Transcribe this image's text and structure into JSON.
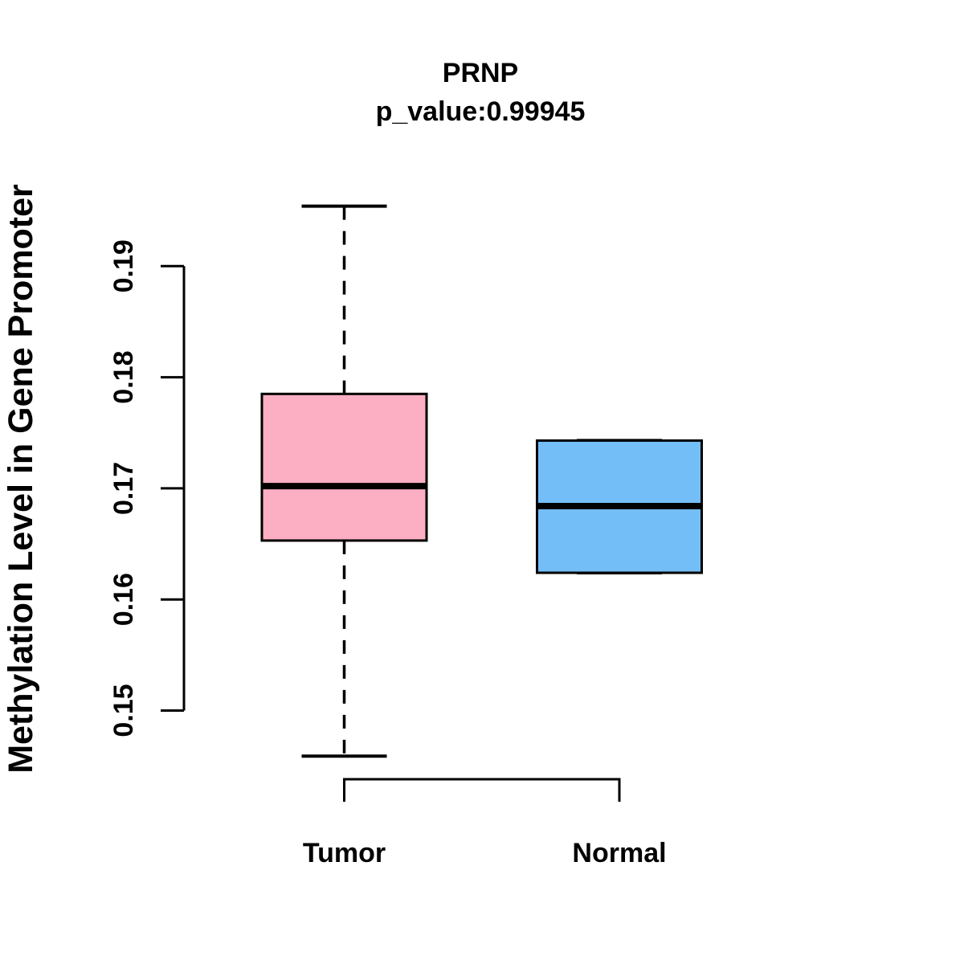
{
  "page": {
    "background": "#ffffff",
    "foreground": "#000000"
  },
  "chart_data": {
    "type": "boxplot",
    "title": "PRNP",
    "subtitle": "p_value:0.99945",
    "p_value": 0.99945,
    "ylabel": "Methylation Level in Gene Promoter",
    "xlabel": "",
    "categories": [
      "Tumor",
      "Normal"
    ],
    "series": [
      {
        "name": "Tumor",
        "color": "#FCAFC3",
        "whisker_low": 0.1459,
        "q1": 0.1653,
        "median": 0.1702,
        "q3": 0.1785,
        "whisker_high": 0.1954,
        "outliers": []
      },
      {
        "name": "Normal",
        "color": "#74BEF8",
        "whisker_low": 0.1624,
        "q1": 0.1624,
        "median": 0.1684,
        "q3": 0.1743,
        "whisker_high": 0.1743,
        "outliers": []
      }
    ],
    "yticks": [
      0.15,
      0.16,
      0.17,
      0.18,
      0.19
    ],
    "ytick_labels": [
      "0.15",
      "0.16",
      "0.17",
      "0.18",
      "0.19"
    ],
    "ylim": [
      0.1459,
      0.1954
    ],
    "grid": false,
    "legend": "none",
    "axis_color": "#000000",
    "box_border_color": "#000000",
    "median_color": "#000000"
  }
}
